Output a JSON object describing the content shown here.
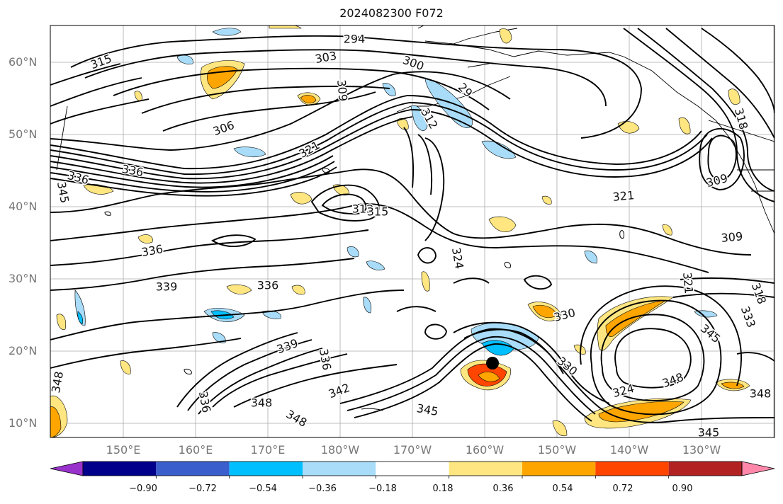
{
  "title": "2024082300 F072",
  "lat_labels": [
    "60°N",
    "50°N",
    "40°N",
    "30°N",
    "20°N",
    "10°N"
  ],
  "lon_labels": [
    "150°E",
    "160°E",
    "170°E",
    "180°W",
    "170°W",
    "160°W",
    "150°W",
    "140°W",
    "130°W"
  ],
  "colorbar": {
    "ticks": [
      "−0.90",
      "−0.72",
      "−0.54",
      "−0.36",
      "−0.18",
      "0.18",
      "0.36",
      "0.54",
      "0.72",
      "0.90"
    ],
    "colors": [
      "#9932cc",
      "#00008b",
      "#3a5fcd",
      "#00bfff",
      "#a8dcf8",
      "#ffffff",
      "#ffe680",
      "#ffa500",
      "#ff4500",
      "#b22222",
      "#ff88aa"
    ]
  },
  "contour_labels": [
    "294",
    "300",
    "303",
    "306",
    "309",
    "312",
    "315",
    "318",
    "321",
    "324",
    "330",
    "333",
    "336",
    "339",
    "342",
    "345",
    "348"
  ],
  "contour_label_instances": [
    {
      "text": "294"
    },
    {
      "text": "300"
    },
    {
      "text": "303"
    },
    {
      "text": "315"
    },
    {
      "text": "309"
    },
    {
      "text": "29"
    },
    {
      "text": "312"
    },
    {
      "text": "306"
    },
    {
      "text": "321"
    },
    {
      "text": "336"
    },
    {
      "text": "336"
    },
    {
      "text": "345"
    },
    {
      "text": "312"
    },
    {
      "text": "315"
    },
    {
      "text": "321"
    },
    {
      "text": "309"
    },
    {
      "text": "309"
    },
    {
      "text": "318"
    },
    {
      "text": "336"
    },
    {
      "text": "339"
    },
    {
      "text": "336"
    },
    {
      "text": "324"
    },
    {
      "text": "330"
    },
    {
      "text": "339"
    },
    {
      "text": "336"
    },
    {
      "text": "348"
    },
    {
      "text": "342"
    },
    {
      "text": "348"
    },
    {
      "text": "348"
    },
    {
      "text": "336"
    },
    {
      "text": "345"
    },
    {
      "text": "330"
    },
    {
      "text": "324"
    },
    {
      "text": "348"
    },
    {
      "text": "345"
    },
    {
      "text": "348"
    },
    {
      "text": "345"
    },
    {
      "text": "333"
    },
    {
      "text": "321"
    },
    {
      "text": "318"
    }
  ]
}
